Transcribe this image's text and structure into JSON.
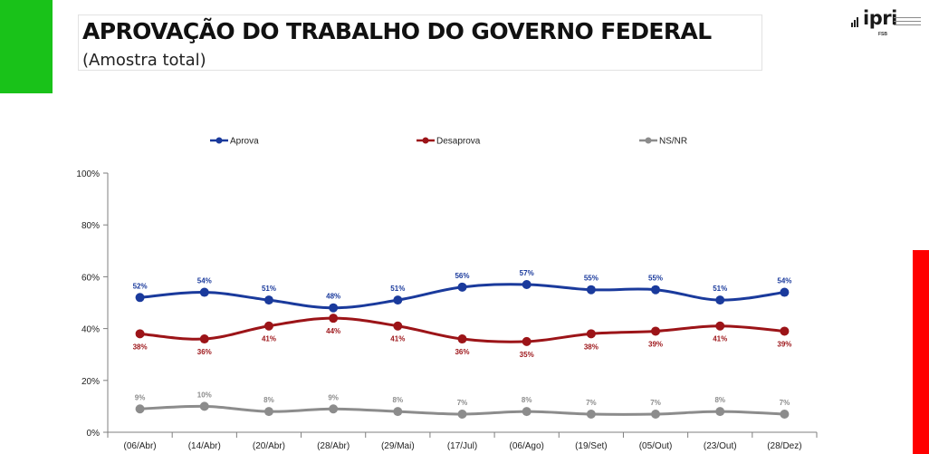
{
  "header": {
    "title": "APROVAÇÃO DO TRABALHO DO GOVERNO FEDERAL",
    "subtitle": "(Amostra total)"
  },
  "logo": {
    "brand_icon": "ipri-logo-icon",
    "wordmark": "ipri",
    "sub_mark": "FSB"
  },
  "chart_data": {
    "type": "line",
    "categories": [
      "(06/Abr)",
      "(14/Abr)",
      "(20/Abr)",
      "(28/Abr)",
      "(29/Mai)",
      "(17/Jul)",
      "(06/Ago)",
      "(19/Set)",
      "(05/Out)",
      "(23/Out)",
      "(28/Dez)"
    ],
    "series": [
      {
        "name": "Aprova",
        "color": "#1a3a9c",
        "values": [
          52,
          54,
          51,
          48,
          51,
          56,
          57,
          55,
          55,
          51,
          54
        ],
        "labels": [
          "52%",
          "54%",
          "51%",
          "48%",
          "51%",
          "56%",
          "57%",
          "55%",
          "55%",
          "51%",
          "54%"
        ]
      },
      {
        "name": "Desaprova",
        "color": "#9c1418",
        "values": [
          38,
          36,
          41,
          44,
          41,
          36,
          35,
          38,
          39,
          41,
          39
        ],
        "labels": [
          "38%",
          "36%",
          "41%",
          "44%",
          "41%",
          "36%",
          "35%",
          "38%",
          "39%",
          "41%",
          "39%"
        ]
      },
      {
        "name": "NS/NR",
        "color": "#8c8c8c",
        "values": [
          9,
          10,
          8,
          9,
          8,
          7,
          8,
          7,
          7,
          8,
          7
        ],
        "labels": [
          "9%",
          "10%",
          "8%",
          "9%",
          "8%",
          "7%",
          "8%",
          "7%",
          "7%",
          "8%",
          "7%"
        ]
      }
    ],
    "ylim": [
      0,
      100
    ],
    "yticks": [
      0,
      20,
      40,
      60,
      80,
      100
    ],
    "ytick_labels": [
      "0%",
      "20%",
      "40%",
      "60%",
      "80%",
      "100%"
    ],
    "grid": false,
    "legend_position": "top"
  }
}
